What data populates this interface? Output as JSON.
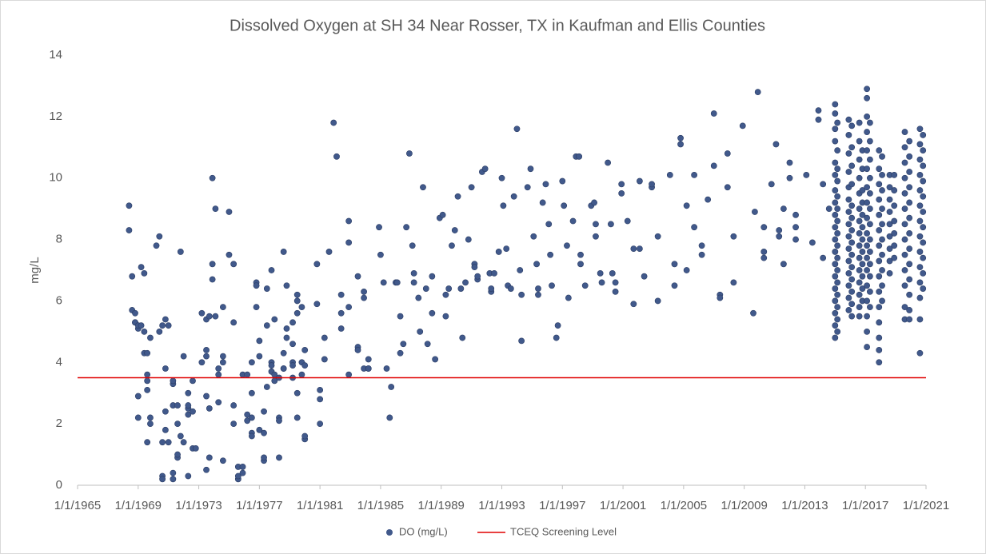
{
  "chart_data": {
    "type": "scatter",
    "title": "Dissolved Oxygen at SH 34 Near Rosser, TX in Kaufman and Ellis Counties",
    "y_label": "mg/L",
    "xlim": [
      1965,
      2021
    ],
    "ylim": [
      0,
      14
    ],
    "xticks": [
      {
        "value": 1965,
        "label": "1/1/1965"
      },
      {
        "value": 1969,
        "label": "1/1/1969"
      },
      {
        "value": 1973,
        "label": "1/1/1973"
      },
      {
        "value": 1977,
        "label": "1/1/1977"
      },
      {
        "value": 1981,
        "label": "1/1/1981"
      },
      {
        "value": 1985,
        "label": "1/1/1985"
      },
      {
        "value": 1989,
        "label": "1/1/1989"
      },
      {
        "value": 1993,
        "label": "1/1/1993"
      },
      {
        "value": 1997,
        "label": "1/1/1997"
      },
      {
        "value": 2001,
        "label": "1/1/2001"
      },
      {
        "value": 2005,
        "label": "1/1/2005"
      },
      {
        "value": 2009,
        "label": "1/1/2009"
      },
      {
        "value": 2013,
        "label": "1/1/2013"
      },
      {
        "value": 2017,
        "label": "1/1/2017"
      },
      {
        "value": 2021,
        "label": "1/1/2021"
      }
    ],
    "yticks": [
      0,
      2,
      4,
      6,
      8,
      10,
      12,
      14
    ],
    "grid": false,
    "legend": "bottom",
    "reference_lines": [
      {
        "name": "TCEQ Screening Level",
        "value": 3.5,
        "color": "#e00000"
      }
    ],
    "series": [
      {
        "name": "DO (mg/L)",
        "color": "#41598b",
        "x": [
          1968.4,
          1968.4,
          1968.6,
          1968.6,
          1968.8,
          1968.8,
          1968.8,
          1969.0,
          1969.0,
          1969.0,
          1969.0,
          1969.2,
          1969.2,
          1969.4,
          1969.4,
          1969.4,
          1969.6,
          1969.6,
          1969.6,
          1969.6,
          1969.6,
          1969.8,
          1969.8,
          1969.8,
          1970.2,
          1970.4,
          1970.4,
          1970.6,
          1970.6,
          1970.6,
          1970.6,
          1970.8,
          1970.8,
          1970.8,
          1970.8,
          1971.0,
          1971.0,
          1971.3,
          1971.3,
          1971.3,
          1971.3,
          1971.3,
          1971.6,
          1971.6,
          1971.6,
          1971.6,
          1971.8,
          1971.8,
          1972.0,
          1972.0,
          1972.3,
          1972.3,
          1972.3,
          1972.3,
          1972.3,
          1972.6,
          1972.6,
          1972.6,
          1972.8,
          1973.2,
          1973.2,
          1973.5,
          1973.5,
          1973.5,
          1973.5,
          1973.5,
          1973.7,
          1973.7,
          1973.7,
          1973.9,
          1973.9,
          1973.9,
          1974.1,
          1974.1,
          1974.3,
          1974.3,
          1974.3,
          1974.6,
          1974.6,
          1974.6,
          1974.6,
          1975.0,
          1975.0,
          1975.3,
          1975.3,
          1975.3,
          1975.3,
          1975.6,
          1975.6,
          1975.6,
          1975.9,
          1975.9,
          1975.9,
          1976.2,
          1976.2,
          1976.2,
          1976.5,
          1976.5,
          1976.5,
          1976.5,
          1976.5,
          1976.8,
          1976.8,
          1976.8,
          1977.0,
          1977.0,
          1977.0,
          1977.3,
          1977.3,
          1977.3,
          1977.3,
          1977.5,
          1977.5,
          1977.5,
          1977.8,
          1977.8,
          1977.8,
          1977.8,
          1978.0,
          1978.0,
          1978.0,
          1978.3,
          1978.3,
          1978.3,
          1978.3,
          1978.6,
          1978.6,
          1978.6,
          1978.6,
          1978.8,
          1978.8,
          1978.8,
          1979.2,
          1979.2,
          1979.2,
          1979.2,
          1979.2,
          1979.5,
          1979.5,
          1979.5,
          1979.5,
          1979.5,
          1979.8,
          1979.8,
          1979.8,
          1980.0,
          1980.0,
          1980.0,
          1980.0,
          1980.8,
          1980.8,
          1981.0,
          1981.0,
          1981.0,
          1981.3,
          1981.3,
          1981.6,
          1981.9,
          1982.1,
          1982.4,
          1982.4,
          1982.4,
          1982.9,
          1982.9,
          1982.9,
          1982.9,
          1983.5,
          1983.5,
          1983.5,
          1983.9,
          1983.9,
          1983.9,
          1984.2,
          1984.2,
          1984.2,
          1984.9,
          1985.0,
          1985.2,
          1985.4,
          1985.6,
          1985.7,
          1986.0,
          1986.1,
          1986.3,
          1986.3,
          1986.5,
          1986.7,
          1986.9,
          1987.1,
          1987.2,
          1987.2,
          1987.5,
          1987.6,
          1987.8,
          1988.0,
          1988.1,
          1988.4,
          1988.4,
          1988.6,
          1988.9,
          1989.1,
          1989.3,
          1989.3,
          1989.5,
          1989.7,
          1989.9,
          1990.1,
          1990.3,
          1990.4,
          1990.6,
          1990.8,
          1991.0,
          1991.2,
          1991.2,
          1991.4,
          1991.4,
          1991.7,
          1991.9,
          1992.2,
          1992.3,
          1992.3,
          1992.5,
          1992.8,
          1993.0,
          1993.1,
          1993.3,
          1993.4,
          1993.6,
          1993.8,
          1994.0,
          1994.2,
          1994.3,
          1994.3,
          1994.7,
          1994.9,
          1995.1,
          1995.3,
          1995.4,
          1995.4,
          1995.7,
          1995.9,
          1996.1,
          1996.2,
          1996.3,
          1996.6,
          1996.7,
          1997.0,
          1997.1,
          1997.3,
          1997.4,
          1997.7,
          1997.9,
          1998.1,
          1998.2,
          1998.2,
          1998.5,
          1998.9,
          1999.1,
          1999.2,
          1999.2,
          1999.5,
          1999.6,
          2000.0,
          2000.2,
          2000.3,
          2000.5,
          2000.5,
          2000.9,
          2000.9,
          2001.3,
          2001.7,
          2001.7,
          2002.1,
          2002.1,
          2002.4,
          2002.9,
          2002.9,
          2003.3,
          2003.3,
          2004.1,
          2004.4,
          2004.4,
          2004.8,
          2004.8,
          2005.2,
          2005.2,
          2005.7,
          2005.7,
          2006.2,
          2006.2,
          2006.6,
          2007.0,
          2007.0,
          2007.4,
          2007.4,
          2007.9,
          2007.9,
          2008.3,
          2008.3,
          2008.9,
          2009.6,
          2009.7,
          2009.9,
          2010.3,
          2010.3,
          2010.3,
          2010.8,
          2011.1,
          2011.3,
          2011.3,
          2011.6,
          2011.6,
          2012.0,
          2012.0,
          2012.4,
          2012.4,
          2012.4,
          2013.1,
          2013.5,
          2013.9,
          2013.9,
          2014.2,
          2014.2,
          2014.6,
          2015.0,
          2015.0,
          2015.0,
          2015.0,
          2015.0,
          2015.0,
          2015.0,
          2015.0,
          2015.0,
          2015.0,
          2015.0,
          2015.0,
          2015.0,
          2015.0,
          2015.0,
          2015.0,
          2015.0,
          2015.0,
          2015.0,
          2015.15,
          2015.15,
          2015.15,
          2015.15,
          2015.15,
          2015.15,
          2015.15,
          2015.15,
          2015.15,
          2015.15,
          2015.15,
          2015.15,
          2015.15,
          2015.15,
          2015.15,
          2015.15,
          2015.9,
          2015.9,
          2015.9,
          2015.9,
          2015.9,
          2015.9,
          2015.9,
          2015.9,
          2015.9,
          2015.9,
          2015.9,
          2015.9,
          2015.9,
          2015.9,
          2015.9,
          2016.1,
          2016.1,
          2016.1,
          2016.1,
          2016.1,
          2016.1,
          2016.1,
          2016.1,
          2016.1,
          2016.1,
          2016.1,
          2016.1,
          2016.1,
          2016.1,
          2016.6,
          2016.6,
          2016.6,
          2016.6,
          2016.6,
          2016.6,
          2016.6,
          2016.6,
          2016.6,
          2016.6,
          2016.6,
          2016.6,
          2016.6,
          2016.6,
          2016.6,
          2016.8,
          2016.8,
          2016.8,
          2016.8,
          2016.8,
          2016.8,
          2016.8,
          2016.8,
          2016.8,
          2016.8,
          2016.8,
          2016.8,
          2017.1,
          2017.1,
          2017.1,
          2017.1,
          2017.1,
          2017.1,
          2017.1,
          2017.1,
          2017.1,
          2017.1,
          2017.1,
          2017.1,
          2017.1,
          2017.1,
          2017.1,
          2017.1,
          2017.1,
          2017.1,
          2017.3,
          2017.3,
          2017.3,
          2017.3,
          2017.3,
          2017.3,
          2017.3,
          2017.3,
          2017.3,
          2017.3,
          2017.3,
          2017.3,
          2017.3,
          2017.9,
          2017.9,
          2017.9,
          2017.9,
          2017.9,
          2017.9,
          2017.9,
          2017.9,
          2017.9,
          2017.9,
          2017.9,
          2017.9,
          2017.9,
          2017.9,
          2017.9,
          2018.1,
          2018.1,
          2018.1,
          2018.1,
          2018.1,
          2018.1,
          2018.1,
          2018.1,
          2018.1,
          2018.1,
          2018.6,
          2018.6,
          2018.6,
          2018.6,
          2018.6,
          2018.6,
          2018.6,
          2018.6,
          2018.6,
          2018.9,
          2018.9,
          2018.9,
          2018.9,
          2018.9,
          2018.9,
          2018.9,
          2019.6,
          2019.6,
          2019.6,
          2019.6,
          2019.6,
          2019.6,
          2019.6,
          2019.6,
          2019.6,
          2019.6,
          2019.6,
          2019.6,
          2019.6,
          2019.9,
          2019.9,
          2019.9,
          2019.9,
          2019.9,
          2019.9,
          2019.9,
          2019.9,
          2019.9,
          2019.9,
          2019.9,
          2019.9,
          2019.9,
          2020.6,
          2020.6,
          2020.6,
          2020.6,
          2020.6,
          2020.6,
          2020.6,
          2020.6,
          2020.6,
          2020.6,
          2020.6,
          2020.6,
          2020.6,
          2020.6,
          2020.8,
          2020.8,
          2020.8,
          2020.8,
          2020.8,
          2020.8,
          2020.8,
          2020.8,
          2020.8,
          2020.8,
          2020.8
        ],
        "values": [
          9.1,
          8.3,
          6.8,
          5.7,
          5.6,
          5.3,
          5.3,
          5.1,
          5.2,
          2.2,
          2.9,
          5.2,
          7.1,
          6.9,
          5.0,
          4.3,
          4.3,
          3.6,
          3.4,
          3.1,
          1.4,
          4.8,
          2.2,
          2.0,
          7.8,
          8.1,
          5.0,
          5.2,
          0.3,
          0.2,
          1.4,
          1.8,
          3.8,
          2.4,
          5.4,
          5.2,
          1.4,
          2.6,
          3.3,
          3.4,
          0.4,
          0.2,
          2.0,
          0.9,
          1.0,
          2.6,
          7.6,
          1.6,
          4.2,
          1.4,
          3.0,
          2.3,
          0.3,
          2.5,
          2.6,
          3.4,
          1.2,
          2.4,
          1.2,
          5.6,
          4.0,
          5.4,
          4.2,
          4.4,
          2.9,
          0.5,
          2.5,
          5.5,
          0.9,
          7.2,
          6.7,
          10.0,
          9.0,
          5.5,
          2.7,
          3.8,
          3.6,
          5.8,
          4.0,
          4.2,
          0.8,
          7.5,
          8.9,
          7.2,
          5.3,
          2.0,
          2.6,
          0.2,
          0.3,
          0.6,
          0.6,
          0.4,
          3.6,
          2.1,
          2.3,
          3.6,
          4.0,
          3.0,
          1.7,
          1.6,
          2.2,
          5.8,
          6.6,
          6.5,
          4.2,
          4.7,
          1.8,
          0.8,
          0.9,
          1.7,
          2.4,
          3.2,
          5.2,
          6.4,
          7.0,
          4.0,
          3.7,
          3.9,
          3.6,
          3.4,
          5.4,
          3.5,
          2.2,
          2.1,
          0.9,
          3.8,
          4.3,
          3.8,
          7.6,
          5.1,
          4.8,
          6.5,
          4.0,
          3.5,
          3.9,
          5.3,
          4.6,
          6.0,
          6.2,
          5.6,
          2.2,
          3.0,
          4.0,
          5.8,
          3.6,
          1.5,
          1.6,
          4.4,
          3.9,
          7.2,
          5.9,
          3.1,
          2.0,
          2.8,
          4.1,
          4.8,
          7.6,
          11.8,
          10.7,
          5.6,
          5.1,
          6.2,
          7.9,
          8.6,
          5.8,
          3.6,
          4.5,
          6.8,
          4.4,
          6.1,
          6.3,
          3.8,
          3.8,
          4.1,
          3.8,
          8.4,
          7.5,
          6.6,
          3.8,
          2.2,
          3.2,
          6.6,
          6.6,
          5.5,
          4.3,
          4.6,
          8.4,
          10.8,
          7.8,
          6.9,
          6.6,
          6.1,
          5.0,
          9.7,
          6.4,
          4.6,
          5.6,
          6.8,
          4.1,
          8.7,
          8.8,
          5.5,
          6.2,
          6.4,
          7.8,
          8.3,
          9.4,
          6.4,
          4.8,
          6.6,
          8.0,
          9.7,
          7.2,
          7.1,
          6.7,
          6.8,
          10.2,
          10.3,
          6.9,
          6.3,
          6.4,
          6.9,
          7.6,
          10.0,
          9.1,
          7.7,
          6.5,
          6.4,
          9.4,
          11.6,
          7.0,
          4.7,
          6.2,
          9.7,
          10.3,
          8.1,
          7.2,
          6.4,
          6.2,
          9.2,
          9.8,
          8.5,
          7.5,
          6.5,
          4.8,
          5.2,
          9.9,
          9.1,
          7.8,
          6.1,
          8.6,
          10.7,
          10.7,
          7.5,
          7.2,
          6.5,
          9.1,
          9.2,
          8.5,
          8.1,
          6.9,
          6.6,
          10.5,
          8.5,
          6.9,
          6.6,
          6.3,
          9.5,
          9.8,
          8.6,
          5.9,
          7.7,
          9.9,
          7.7,
          6.8,
          9.7,
          9.8,
          8.1,
          6.0,
          10.1,
          6.5,
          7.2,
          11.1,
          11.3,
          9.1,
          7.0,
          10.1,
          8.4,
          7.8,
          7.5,
          9.3,
          12.1,
          10.4,
          6.2,
          6.1,
          10.8,
          9.7,
          8.1,
          6.6,
          11.7,
          5.6,
          8.9,
          12.8,
          7.6,
          7.4,
          8.4,
          9.8,
          11.1,
          8.3,
          8.1,
          7.2,
          9.0,
          10.5,
          10.0,
          8.4,
          8.0,
          8.8,
          10.1,
          7.9,
          12.2,
          11.9,
          9.8,
          7.4,
          9.0,
          12.4,
          12.1,
          11.6,
          11.2,
          10.5,
          10.1,
          9.6,
          9.2,
          8.8,
          8.4,
          8.0,
          7.6,
          7.2,
          6.8,
          6.4,
          6.0,
          5.6,
          5.2,
          4.8,
          11.8,
          10.9,
          10.3,
          9.9,
          9.4,
          9.0,
          8.6,
          8.2,
          7.8,
          7.4,
          7.0,
          6.6,
          6.2,
          5.8,
          5.4,
          5.0,
          11.9,
          11.4,
          10.8,
          10.2,
          9.7,
          9.3,
          8.9,
          8.5,
          8.1,
          7.7,
          7.3,
          6.9,
          6.5,
          6.1,
          5.7,
          11.7,
          11.0,
          10.4,
          9.8,
          9.1,
          8.7,
          8.3,
          7.9,
          7.5,
          7.1,
          6.7,
          6.3,
          5.9,
          5.5,
          11.8,
          11.2,
          10.6,
          10.0,
          9.5,
          9.0,
          8.6,
          8.2,
          7.8,
          7.4,
          7.0,
          6.6,
          6.2,
          5.8,
          5.5,
          10.9,
          10.3,
          9.6,
          9.2,
          8.8,
          8.4,
          8.0,
          7.6,
          7.2,
          6.8,
          6.4,
          6.0,
          12.9,
          12.6,
          12.0,
          11.5,
          10.9,
          10.3,
          9.7,
          9.2,
          8.7,
          8.2,
          7.8,
          7.4,
          7.0,
          6.5,
          6.0,
          5.5,
          5.0,
          4.5,
          11.8,
          11.2,
          10.6,
          10.0,
          9.5,
          9.0,
          8.5,
          8.0,
          7.6,
          7.2,
          6.8,
          6.3,
          5.8,
          10.9,
          10.3,
          9.8,
          9.3,
          8.8,
          8.3,
          7.8,
          7.3,
          6.8,
          6.3,
          5.8,
          5.3,
          4.8,
          4.4,
          4.0,
          10.7,
          10.1,
          9.6,
          9.0,
          8.5,
          8.0,
          7.5,
          7.0,
          6.5,
          6.0,
          10.1,
          9.7,
          9.3,
          8.9,
          8.5,
          8.1,
          7.7,
          7.3,
          6.9,
          10.1,
          9.6,
          9.1,
          8.6,
          8.2,
          7.8,
          7.4,
          11.5,
          11.0,
          10.5,
          10.0,
          9.5,
          9.0,
          8.5,
          8.0,
          7.5,
          7.0,
          6.5,
          5.8,
          5.4,
          11.2,
          10.7,
          10.2,
          9.7,
          9.2,
          8.7,
          8.2,
          7.7,
          7.2,
          6.7,
          6.2,
          5.7,
          5.4,
          11.6,
          11.1,
          10.6,
          10.1,
          9.6,
          9.1,
          8.6,
          8.1,
          7.6,
          7.1,
          6.6,
          6.1,
          5.4,
          4.3,
          11.4,
          10.9,
          10.4,
          9.9,
          9.4,
          8.9,
          8.4,
          7.9,
          7.4,
          6.9,
          6.4
        ]
      }
    ]
  }
}
